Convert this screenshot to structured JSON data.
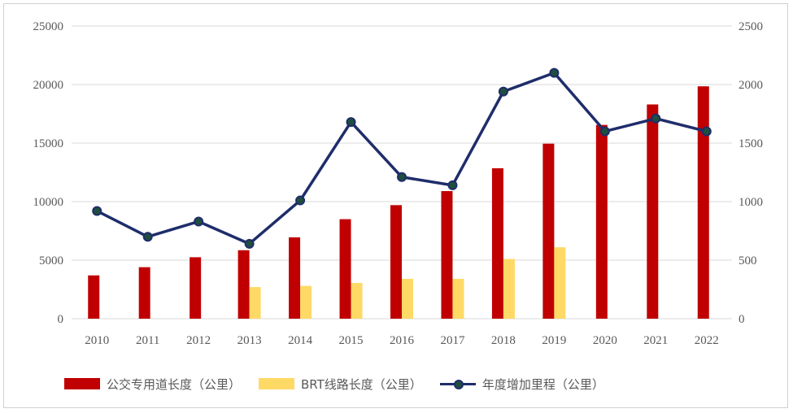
{
  "chart_data": {
    "type": "bar",
    "categories": [
      "2010",
      "2011",
      "2012",
      "2013",
      "2014",
      "2015",
      "2016",
      "2017",
      "2018",
      "2019",
      "2020",
      "2021",
      "2022"
    ],
    "series": [
      {
        "name": "公交专用道长度（公里）",
        "type": "bar",
        "axis": "left",
        "color": "#c00000",
        "values": [
          3700,
          4400,
          5250,
          5850,
          6950,
          8500,
          9700,
          10900,
          12850,
          14950,
          16550,
          18300,
          19850
        ]
      },
      {
        "name": "BRT线路长度（公里）",
        "type": "bar",
        "axis": "left",
        "color": "#ffd966",
        "values": [
          null,
          null,
          null,
          2700,
          2800,
          3050,
          3400,
          3400,
          5100,
          6100,
          null,
          null,
          null
        ]
      },
      {
        "name": "年度增加里程（公里）",
        "type": "line",
        "axis": "right",
        "color": "#1f2d6b",
        "values": [
          920,
          700,
          830,
          640,
          1010,
          1680,
          1210,
          1140,
          1940,
          2100,
          1600,
          1710,
          1600
        ]
      }
    ],
    "y_left": {
      "min": 0,
      "max": 25000,
      "ticks": [
        0,
        5000,
        10000,
        15000,
        20000,
        25000
      ]
    },
    "y_right": {
      "min": 0,
      "max": 2500,
      "ticks": [
        0,
        500,
        1000,
        1500,
        2000,
        2500
      ]
    },
    "grid": true,
    "legend_position": "bottom"
  }
}
